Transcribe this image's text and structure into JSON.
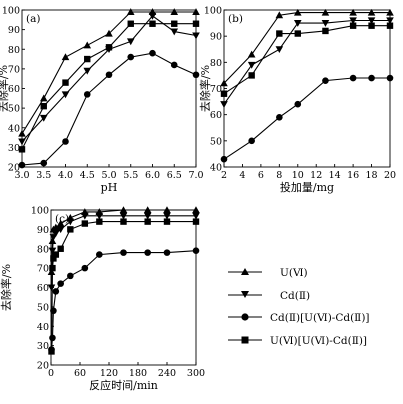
{
  "legend": {
    "entries": [
      {
        "label": "U(Ⅵ)",
        "marker": "triangle-up"
      },
      {
        "label": "Cd(Ⅱ)",
        "marker": "triangle-down"
      },
      {
        "label": "Cd(Ⅱ)[U(Ⅵ)-Cd(Ⅱ)]",
        "marker": "circle"
      },
      {
        "label": "U(Ⅵ)[U(Ⅵ)-Cd(Ⅱ)]",
        "marker": "square"
      }
    ]
  },
  "chart_data": [
    {
      "type": "line",
      "panel_label": "(a)",
      "xlabel": "pH",
      "ylabel": "去除率/%",
      "xlim": [
        3.0,
        7.0
      ],
      "ylim": [
        20,
        100
      ],
      "xticks": [
        3.0,
        3.5,
        4.0,
        4.5,
        5.0,
        5.5,
        6.0,
        6.5,
        7.0
      ],
      "xtick_labels": [
        "3.0",
        "3.5",
        "4.0",
        "4.5",
        "5.0",
        "5.5",
        "6.0",
        "6.5",
        "7.0"
      ],
      "yticks": [
        20,
        30,
        40,
        50,
        60,
        70,
        80,
        90,
        100
      ],
      "x": [
        3.0,
        3.5,
        4.0,
        4.5,
        5.0,
        5.5,
        6.0,
        6.5,
        7.0
      ],
      "series": [
        {
          "name": "U(Ⅵ)",
          "marker": "triangle-up",
          "values": [
            37,
            55,
            76,
            82,
            88,
            99,
            99,
            99,
            99
          ]
        },
        {
          "name": "Cd(Ⅱ)",
          "marker": "triangle-down",
          "values": [
            33,
            45,
            57,
            69,
            80,
            84,
            97,
            89,
            87
          ]
        },
        {
          "name": "Cd(Ⅱ)[U(Ⅵ)-Cd(Ⅱ)]",
          "marker": "circle",
          "values": [
            21,
            22,
            33,
            57,
            67,
            76,
            78,
            72,
            67
          ]
        },
        {
          "name": "U(Ⅵ)[U(Ⅵ)-Cd(Ⅱ)]",
          "marker": "square",
          "values": [
            29,
            51,
            63,
            75,
            81,
            93,
            93,
            93,
            93
          ]
        }
      ]
    },
    {
      "type": "line",
      "panel_label": "(b)",
      "xlabel": "投加量/mg",
      "ylabel": "去除率/%",
      "xlim": [
        2,
        20
      ],
      "ylim": [
        40,
        100
      ],
      "xticks": [
        2,
        4,
        6,
        8,
        10,
        12,
        14,
        16,
        18,
        20
      ],
      "xtick_labels": [
        "2",
        "4",
        "6",
        "8",
        "10",
        "12",
        "14",
        "16",
        "18",
        "20"
      ],
      "yticks": [
        40,
        50,
        60,
        70,
        80,
        90,
        100
      ],
      "x": [
        2,
        5,
        8,
        10,
        13,
        16,
        18,
        20
      ],
      "series": [
        {
          "name": "U(Ⅵ)",
          "marker": "triangle-up",
          "values": [
            72,
            83,
            98,
            99,
            99,
            99,
            99,
            99
          ]
        },
        {
          "name": "Cd(Ⅱ)",
          "marker": "triangle-down",
          "values": [
            64,
            79,
            85,
            95,
            95,
            96,
            96,
            96
          ]
        },
        {
          "name": "Cd(Ⅱ)[U(Ⅵ)-Cd(Ⅱ)]",
          "marker": "circle",
          "values": [
            43,
            50,
            59,
            64,
            73,
            74,
            74,
            74
          ]
        },
        {
          "name": "U(Ⅵ)[U(Ⅵ)-Cd(Ⅱ)]",
          "marker": "square",
          "values": [
            68,
            75,
            91,
            91,
            92,
            94,
            94,
            94
          ]
        }
      ]
    },
    {
      "type": "line",
      "panel_label": "(c)",
      "xlabel": "反应时间/min",
      "ylabel": "去除率/%",
      "xlim": [
        0,
        300
      ],
      "ylim": [
        20,
        100
      ],
      "xticks": [
        0,
        60,
        120,
        180,
        240,
        300
      ],
      "xtick_labels": [
        "0",
        "60",
        "120",
        "180",
        "240",
        "300"
      ],
      "yticks": [
        20,
        30,
        40,
        50,
        60,
        70,
        80,
        90,
        100
      ],
      "x": [
        1,
        3,
        5,
        10,
        20,
        40,
        70,
        100,
        150,
        200,
        240,
        300
      ],
      "series": [
        {
          "name": "U(Ⅵ)",
          "marker": "triangle-up",
          "values": [
            68,
            84,
            90,
            91,
            93,
            96,
            99,
            99,
            100,
            100,
            100,
            100
          ]
        },
        {
          "name": "Cd(Ⅱ)",
          "marker": "triangle-down",
          "values": [
            60,
            79,
            86,
            88,
            90,
            94,
            97,
            97,
            97,
            97,
            97,
            97
          ]
        },
        {
          "name": "Cd(Ⅱ)[U(Ⅵ)-Cd(Ⅱ)]",
          "marker": "circle",
          "values": [
            28,
            34,
            48,
            58,
            62,
            66,
            70,
            77,
            78,
            78,
            78,
            79
          ]
        },
        {
          "name": "U(Ⅵ)[U(Ⅵ)-Cd(Ⅱ)]",
          "marker": "square",
          "values": [
            27,
            70,
            75,
            77,
            80,
            90,
            93,
            94,
            94,
            94,
            94,
            94
          ]
        }
      ]
    }
  ]
}
